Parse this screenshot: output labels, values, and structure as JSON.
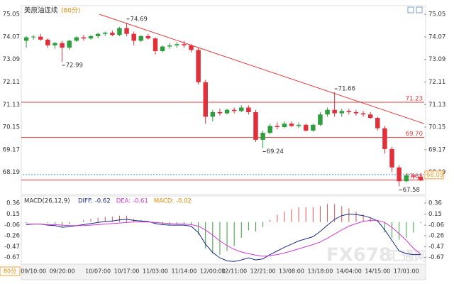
{
  "chart_data": [
    {
      "type": "candlestick",
      "title": "美原油连续",
      "subtitle": "(80分)",
      "period_button": "80分",
      "categories": [
        null,
        "09/10:00",
        null,
        null,
        null,
        "09/20:00",
        null,
        null,
        null,
        null,
        "10/07:00",
        null,
        null,
        null,
        "10/17:00",
        null,
        null,
        null,
        "11/03:00",
        null,
        null,
        null,
        "11/14:00",
        null,
        null,
        null,
        "12/00:00",
        null,
        null,
        "12/11:00",
        null,
        null,
        null,
        "12/21:00",
        null,
        null,
        null,
        "13/08:00",
        null,
        null,
        null,
        "13/18:00",
        null,
        null,
        null,
        "14/04:00",
        null,
        null,
        null,
        "14/15:00",
        null,
        null,
        null,
        "17/01:00",
        null,
        null
      ],
      "series": [
        {
          "up_color": "#2e9e3e",
          "down_color": "#e0303a",
          "values": [
            [
              73.9,
              74.1,
              73.6,
              74.05
            ],
            [
              74.05,
              74.15,
              73.95,
              74.08
            ],
            [
              74.08,
              74.2,
              73.9,
              73.95
            ],
            [
              73.95,
              74.0,
              73.6,
              73.7
            ],
            [
              73.7,
              73.85,
              73.55,
              73.8
            ],
            [
              73.8,
              73.9,
              72.99,
              73.6
            ],
            [
              73.6,
              73.95,
              73.5,
              73.9
            ],
            [
              73.9,
              74.1,
              73.85,
              74.05
            ],
            [
              74.05,
              74.15,
              73.9,
              74.0
            ],
            [
              74.0,
              74.15,
              73.95,
              74.1
            ],
            [
              74.1,
              74.25,
              74.0,
              74.2
            ],
            [
              74.2,
              74.3,
              74.1,
              74.25
            ],
            [
              74.25,
              74.35,
              74.1,
              74.15
            ],
            [
              74.15,
              74.5,
              74.1,
              74.45
            ],
            [
              74.45,
              74.69,
              74.1,
              74.2
            ],
            [
              74.2,
              74.3,
              73.7,
              73.9
            ],
            [
              73.9,
              74.15,
              73.85,
              74.1
            ],
            [
              74.1,
              74.2,
              73.95,
              74.0
            ],
            [
              74.0,
              74.05,
              73.3,
              73.45
            ],
            [
              73.45,
              73.7,
              73.4,
              73.65
            ],
            [
              73.65,
              73.8,
              73.55,
              73.7
            ],
            [
              73.7,
              73.85,
              73.6,
              73.75
            ],
            [
              73.75,
              73.9,
              73.6,
              73.7
            ],
            [
              73.7,
              73.75,
              73.4,
              73.5
            ],
            [
              73.5,
              73.6,
              72.0,
              72.1
            ],
            [
              72.1,
              72.2,
              70.3,
              70.6
            ],
            [
              70.6,
              70.9,
              70.4,
              70.8
            ],
            [
              70.8,
              70.95,
              70.65,
              70.75
            ],
            [
              70.75,
              70.95,
              70.7,
              70.9
            ],
            [
              70.9,
              71.0,
              70.75,
              70.85
            ],
            [
              70.85,
              71.1,
              70.8,
              71.0
            ],
            [
              71.0,
              71.1,
              70.7,
              70.8
            ],
            [
              70.8,
              70.9,
              69.5,
              69.6
            ],
            [
              69.6,
              70.0,
              69.24,
              69.9
            ],
            [
              69.9,
              70.3,
              69.85,
              70.2
            ],
            [
              70.2,
              70.35,
              70.05,
              70.15
            ],
            [
              70.15,
              70.4,
              70.1,
              70.3
            ],
            [
              70.3,
              70.4,
              70.15,
              70.2
            ],
            [
              70.2,
              70.35,
              70.1,
              70.25
            ],
            [
              70.25,
              70.3,
              69.95,
              70.0
            ],
            [
              70.0,
              70.3,
              69.95,
              70.25
            ],
            [
              70.25,
              70.8,
              70.2,
              70.7
            ],
            [
              70.7,
              71.0,
              70.6,
              70.9
            ],
            [
              70.9,
              71.66,
              70.6,
              70.75
            ],
            [
              70.75,
              70.95,
              70.6,
              70.85
            ],
            [
              70.85,
              70.95,
              70.7,
              70.8
            ],
            [
              70.8,
              70.9,
              70.65,
              70.75
            ],
            [
              70.75,
              70.85,
              70.6,
              70.7
            ],
            [
              70.7,
              70.8,
              70.5,
              70.55
            ],
            [
              70.55,
              70.6,
              70.0,
              70.1
            ],
            [
              70.1,
              70.2,
              69.0,
              69.2
            ],
            [
              69.2,
              69.3,
              68.2,
              68.4
            ],
            [
              68.4,
              68.5,
              67.58,
              67.8
            ],
            [
              67.8,
              68.15,
              67.75,
              68.05
            ],
            [
              68.05,
              68.15,
              67.9,
              68.0
            ],
            [
              68.0,
              68.1,
              67.8,
              67.85
            ]
          ]
        }
      ],
      "ylim": [
        67.5,
        75.3
      ],
      "yticks": [
        68.19,
        69.17,
        70.15,
        71.13,
        72.11,
        73.09,
        74.07,
        75.05
      ],
      "annotations": [
        {
          "index": 5,
          "value": 72.99
        },
        {
          "index": 14,
          "value": 74.69
        },
        {
          "index": 33,
          "value": 69.24
        },
        {
          "index": 43,
          "value": 71.66
        },
        {
          "index": 52,
          "value": 67.58
        }
      ],
      "horizontal_lines": [
        {
          "value": 71.23,
          "color": "#e03c3c"
        },
        {
          "value": {
            "value": 69.7,
            "label": "69.70"
          },
          "color": "#e03c3c"
        },
        {
          "value": 67.85,
          "color": "#e03c3c"
        }
      ],
      "current_price": {
        "value": 68.09,
        "color": "#4a90e2",
        "box_color": "#f0a030"
      },
      "trendline": {
        "color": "#e03c3c",
        "points": [
          [
            10.2,
            75.05
          ],
          [
            55.5,
            70.3
          ]
        ]
      },
      "watermark": [
        "FX678",
        "汇通网"
      ]
    },
    {
      "type": "macd",
      "title": "MACD(26,12,9)",
      "ylim": [
        -0.8,
        0.44
      ],
      "yticks": [
        -0.67,
        -0.47,
        -0.26,
        -0.06,
        0.15,
        0.36
      ],
      "histogram": {
        "name": "MACD: -0.02",
        "name_color": "#e08a00",
        "up_color": "#e05050",
        "down_color": "#3aa03a",
        "values": [
          -0.02,
          0,
          0,
          -0.02,
          -0.04,
          -0.08,
          -0.04,
          0,
          0.04,
          0.06,
          0.08,
          0.1,
          0.1,
          0.12,
          0.12,
          0.06,
          0.04,
          0.02,
          -0.04,
          -0.06,
          -0.06,
          -0.04,
          -0.04,
          -0.06,
          -0.24,
          -0.5,
          -0.6,
          -0.62,
          -0.55,
          -0.45,
          -0.3,
          -0.16,
          -0.18,
          -0.1,
          0.04,
          0.14,
          0.2,
          0.24,
          0.28,
          0.28,
          0.28,
          0.3,
          0.34,
          0.34,
          0.3,
          0.26,
          0.2,
          0.14,
          0.08,
          0.02,
          -0.2,
          -0.3,
          -0.34,
          -0.3,
          -0.2,
          -0.02
        ]
      },
      "series": [
        {
          "name": "DIFF: -0.62",
          "color": "#1a2a8a",
          "values": [
            -0.05,
            -0.04,
            -0.04,
            -0.06,
            -0.07,
            -0.1,
            -0.09,
            -0.07,
            -0.05,
            -0.03,
            -0.01,
            0.01,
            0.02,
            0.04,
            0.05,
            0.03,
            0.02,
            0.01,
            -0.03,
            -0.05,
            -0.06,
            -0.06,
            -0.06,
            -0.08,
            -0.2,
            -0.42,
            -0.58,
            -0.68,
            -0.74,
            -0.75,
            -0.72,
            -0.68,
            -0.72,
            -0.7,
            -0.62,
            -0.55,
            -0.48,
            -0.42,
            -0.36,
            -0.32,
            -0.28,
            -0.18,
            -0.06,
            0.05,
            0.12,
            0.15,
            0.14,
            0.12,
            0.08,
            0.02,
            -0.15,
            -0.35,
            -0.55,
            -0.6,
            -0.62,
            -0.62
          ]
        },
        {
          "name": "DEA: -0.61",
          "color": "#d23ad2",
          "values": [
            -0.04,
            -0.04,
            -0.04,
            -0.05,
            -0.05,
            -0.06,
            -0.07,
            -0.07,
            -0.07,
            -0.06,
            -0.05,
            -0.04,
            -0.03,
            -0.02,
            -0.01,
            0.0,
            0.0,
            0.0,
            -0.01,
            -0.02,
            -0.03,
            -0.04,
            -0.04,
            -0.05,
            -0.08,
            -0.15,
            -0.25,
            -0.36,
            -0.45,
            -0.52,
            -0.57,
            -0.6,
            -0.63,
            -0.65,
            -0.64,
            -0.62,
            -0.59,
            -0.55,
            -0.51,
            -0.47,
            -0.43,
            -0.38,
            -0.31,
            -0.23,
            -0.15,
            -0.08,
            -0.03,
            0.01,
            0.03,
            0.03,
            -0.01,
            -0.1,
            -0.22,
            -0.35,
            -0.5,
            -0.61
          ]
        }
      ]
    }
  ]
}
